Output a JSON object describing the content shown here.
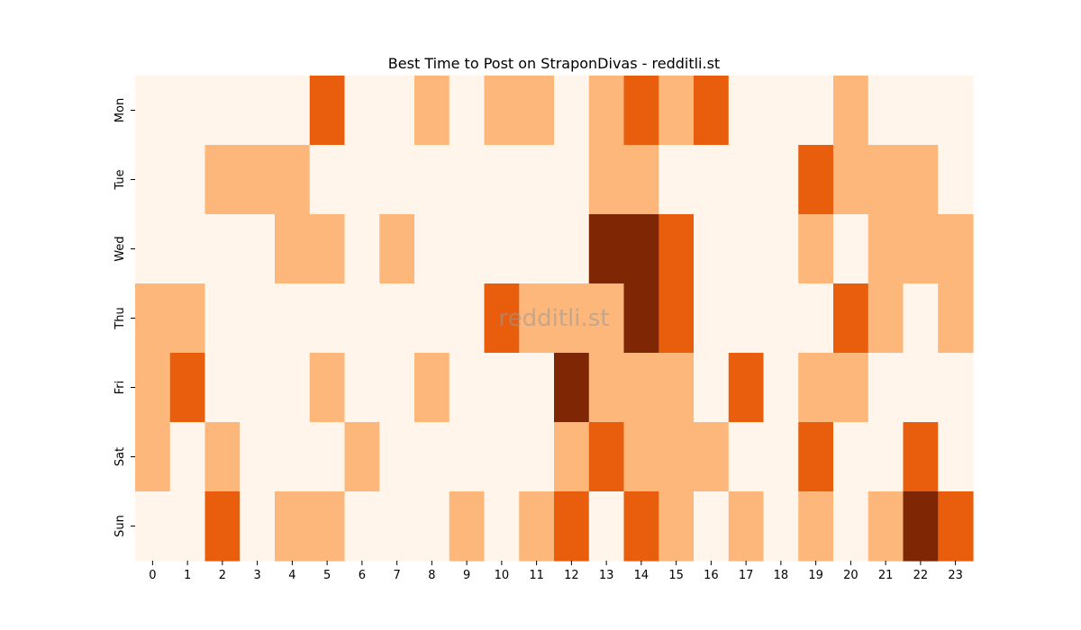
{
  "chart_data": {
    "type": "heatmap",
    "title": "Best Time to Post on StraponDivas - redditli.st",
    "watermark": "redditli.st",
    "xlabel": "",
    "ylabel": "",
    "x_categories": [
      "0",
      "1",
      "2",
      "3",
      "4",
      "5",
      "6",
      "7",
      "8",
      "9",
      "10",
      "11",
      "12",
      "13",
      "14",
      "15",
      "16",
      "17",
      "18",
      "19",
      "20",
      "21",
      "22",
      "23"
    ],
    "y_categories": [
      "Mon",
      "Tue",
      "Wed",
      "Thu",
      "Fri",
      "Sat",
      "Sun"
    ],
    "levels": [
      0,
      1,
      2,
      3
    ],
    "colors": {
      "0": "#fff5eb",
      "1": "#fdb77a",
      "2": "#e95e0d",
      "3": "#7f2704"
    },
    "grid": false,
    "legend": "none",
    "values": [
      [
        0,
        0,
        0,
        0,
        0,
        2,
        0,
        0,
        1,
        0,
        1,
        1,
        0,
        1,
        2,
        1,
        2,
        0,
        0,
        0,
        1,
        0,
        0,
        0
      ],
      [
        0,
        0,
        1,
        1,
        1,
        0,
        0,
        0,
        0,
        0,
        0,
        0,
        0,
        1,
        1,
        0,
        0,
        0,
        0,
        2,
        1,
        1,
        1,
        0
      ],
      [
        0,
        0,
        0,
        0,
        1,
        1,
        0,
        1,
        0,
        0,
        0,
        0,
        0,
        3,
        3,
        2,
        0,
        0,
        0,
        1,
        0,
        1,
        1,
        1
      ],
      [
        1,
        1,
        0,
        0,
        0,
        0,
        0,
        0,
        0,
        0,
        2,
        1,
        1,
        1,
        3,
        2,
        0,
        0,
        0,
        0,
        2,
        1,
        0,
        1
      ],
      [
        1,
        2,
        0,
        0,
        0,
        1,
        0,
        0,
        1,
        0,
        0,
        0,
        3,
        1,
        1,
        1,
        0,
        2,
        0,
        1,
        1,
        0,
        0,
        0
      ],
      [
        1,
        0,
        1,
        0,
        0,
        0,
        1,
        0,
        0,
        0,
        0,
        0,
        1,
        2,
        1,
        1,
        1,
        0,
        0,
        2,
        0,
        0,
        2,
        0
      ],
      [
        0,
        0,
        2,
        0,
        1,
        1,
        0,
        0,
        0,
        1,
        0,
        1,
        2,
        0,
        2,
        1,
        0,
        1,
        0,
        1,
        0,
        1,
        3,
        2
      ]
    ]
  }
}
